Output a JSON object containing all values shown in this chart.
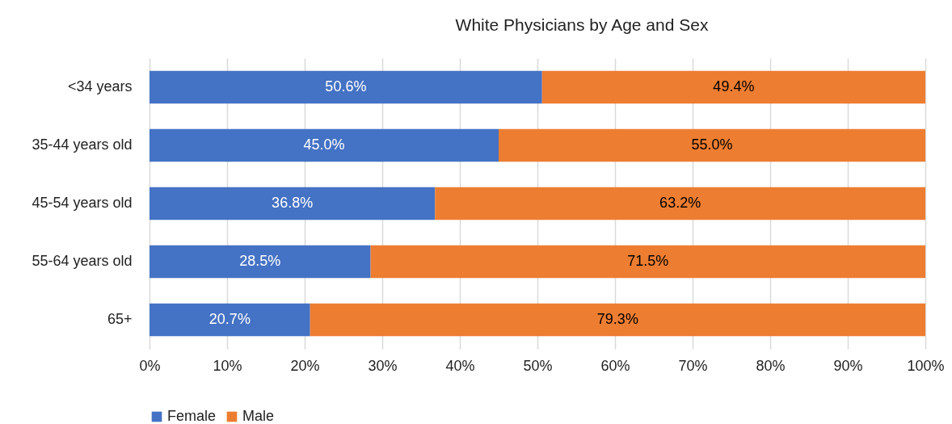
{
  "chart_data": {
    "type": "bar",
    "title": "White Physicians by Age and Sex",
    "orientation": "horizontal",
    "stacked": true,
    "categories": [
      "<34 years",
      "35-44 years old",
      "45-54 years old",
      "55-64 years old",
      "65+"
    ],
    "series": [
      {
        "name": "Female",
        "color": "#4472c4",
        "values": [
          50.6,
          45.0,
          36.8,
          28.5,
          20.7
        ],
        "value_labels": [
          "50.6%",
          "45.0%",
          "36.8%",
          "28.5%",
          "20.7%"
        ]
      },
      {
        "name": "Male",
        "color": "#ed7d31",
        "values": [
          49.4,
          55.0,
          63.2,
          71.5,
          79.3
        ],
        "value_labels": [
          "49.4%",
          "55.0%",
          "63.2%",
          "71.5%",
          "79.3%"
        ]
      }
    ],
    "xlim": [
      0,
      100
    ],
    "xticks": [
      {
        "value": 0,
        "label": "0%"
      },
      {
        "value": 10,
        "label": "10%"
      },
      {
        "value": 20,
        "label": "20%"
      },
      {
        "value": 30,
        "label": "30%"
      },
      {
        "value": 40,
        "label": "40%"
      },
      {
        "value": 50,
        "label": "50%"
      },
      {
        "value": 60,
        "label": "60%"
      },
      {
        "value": 70,
        "label": "70%"
      },
      {
        "value": 80,
        "label": "80%"
      },
      {
        "value": 90,
        "label": "90%"
      },
      {
        "value": 100,
        "label": "100%"
      }
    ],
    "grid": "x",
    "legend": "bottom"
  }
}
